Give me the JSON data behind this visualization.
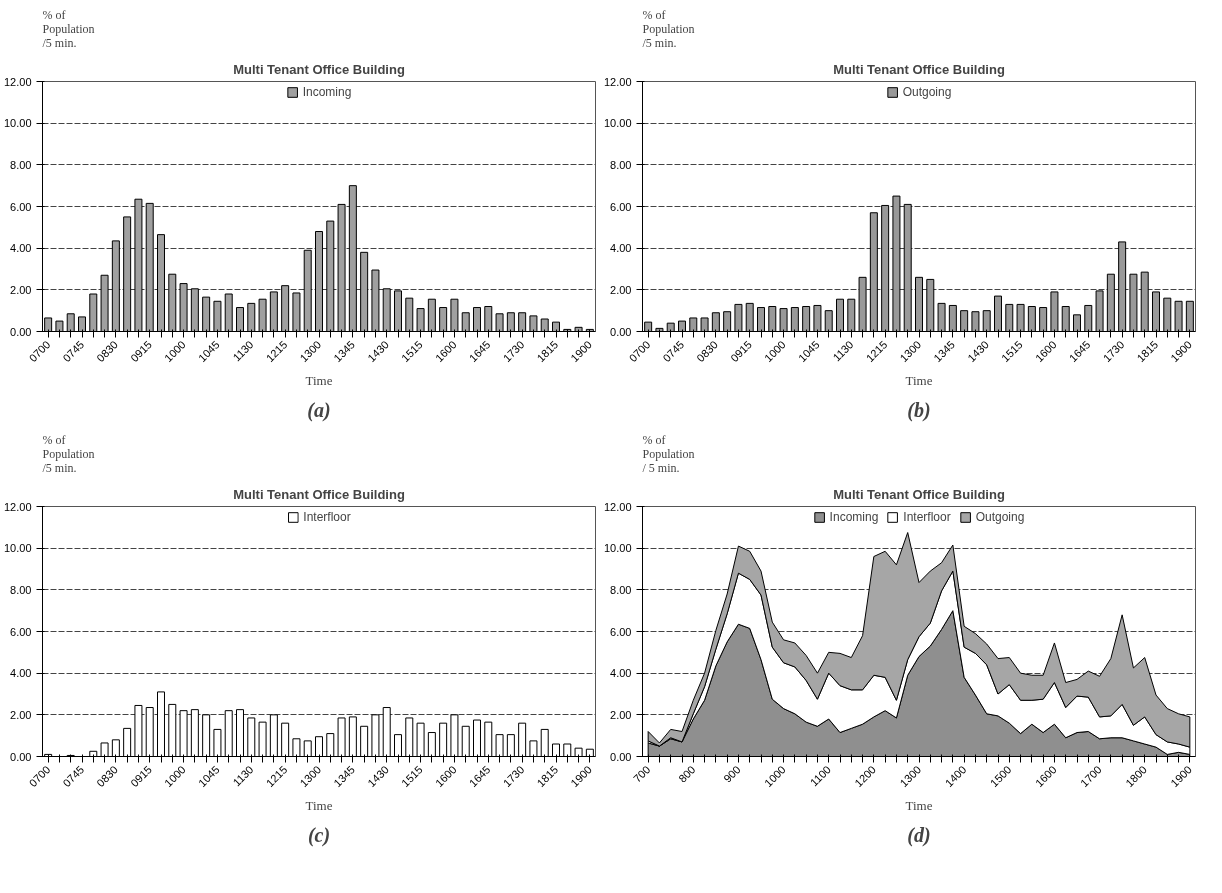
{
  "chart_data": [
    {
      "type": "bar",
      "title": "Multi Tenant Office Building",
      "ylabel": "% of\nPopulation\n/5 min.",
      "xlabel": "Time",
      "annotations": [
        "(a)"
      ],
      "categories": [
        "0700",
        null,
        null,
        "0745",
        null,
        null,
        "0830",
        null,
        null,
        "0915",
        null,
        null,
        "1000",
        null,
        null,
        "1045",
        null,
        null,
        "1130",
        null,
        null,
        "1215",
        null,
        null,
        "1300",
        null,
        null,
        "1345",
        null,
        null,
        "1430",
        null,
        null,
        "1515",
        null,
        null,
        "1600",
        null,
        null,
        "1645",
        null,
        null,
        "1730",
        null,
        null,
        "1815",
        null,
        null,
        "1900"
      ],
      "series": [
        {
          "name": "Incoming",
          "color": "#a0a0a0",
          "values": [
            0.65,
            0.5,
            0.85,
            0.7,
            1.8,
            2.7,
            4.35,
            5.5,
            6.35,
            6.15,
            4.65,
            2.75,
            2.3,
            2.05,
            1.65,
            1.45,
            1.8,
            1.15,
            1.35,
            1.55,
            1.9,
            2.2,
            1.85,
            3.9,
            4.8,
            5.3,
            6.1,
            7.0,
            3.8,
            2.95,
            2.05,
            1.95,
            1.6,
            1.1,
            1.55,
            1.15,
            1.55,
            0.9,
            1.15,
            1.2,
            0.85,
            0.9,
            0.9,
            0.75,
            0.6,
            0.45,
            0.1,
            0.2,
            0.1
          ]
        }
      ],
      "ylim": [
        0,
        12
      ],
      "yticks": [
        {
          "value": 0,
          "label": "0.00"
        },
        {
          "value": 2,
          "label": "2.00"
        },
        {
          "value": 4,
          "label": "4.00"
        },
        {
          "value": 6,
          "label": "6.00"
        },
        {
          "value": 8,
          "label": "8.00"
        },
        {
          "value": 10,
          "label": "10.00"
        },
        {
          "value": 12,
          "label": "12.00"
        }
      ],
      "grid": "y",
      "legend": "top"
    },
    {
      "type": "bar",
      "title": "Multi Tenant Office Building",
      "ylabel": "% of\nPopulation\n/5 min.",
      "xlabel": "Time",
      "annotations": [
        "(b)"
      ],
      "categories": [
        "0700",
        null,
        null,
        "0745",
        null,
        null,
        "0830",
        null,
        null,
        "0915",
        null,
        null,
        "1000",
        null,
        null,
        "1045",
        null,
        null,
        "1130",
        null,
        null,
        "1215",
        null,
        null,
        "1300",
        null,
        null,
        "1345",
        null,
        null,
        "1430",
        null,
        null,
        "1515",
        null,
        null,
        "1600",
        null,
        null,
        "1645",
        null,
        null,
        "1730",
        null,
        null,
        "1815",
        null,
        null,
        "1900"
      ],
      "series": [
        {
          "name": "Outgoing",
          "color": "#999999",
          "values": [
            0.45,
            0.15,
            0.4,
            0.5,
            0.65,
            0.65,
            0.9,
            0.95,
            1.3,
            1.35,
            1.15,
            1.2,
            1.1,
            1.15,
            1.2,
            1.25,
            1.0,
            1.55,
            1.55,
            2.6,
            5.7,
            6.05,
            6.5,
            6.1,
            2.6,
            2.5,
            1.35,
            1.25,
            1.0,
            0.95,
            1.0,
            1.7,
            1.3,
            1.3,
            1.2,
            1.15,
            1.9,
            1.2,
            0.8,
            1.25,
            1.95,
            2.75,
            4.3,
            2.75,
            2.85,
            1.9,
            1.6,
            1.45,
            1.45
          ]
        }
      ],
      "ylim": [
        0,
        12
      ],
      "yticks": [
        {
          "value": 0,
          "label": "0.00"
        },
        {
          "value": 2,
          "label": "2.00"
        },
        {
          "value": 4,
          "label": "4.00"
        },
        {
          "value": 6,
          "label": "6.00"
        },
        {
          "value": 8,
          "label": "8.00"
        },
        {
          "value": 10,
          "label": "10.00"
        },
        {
          "value": 12,
          "label": "12.00"
        }
      ],
      "grid": "y",
      "legend": "top"
    },
    {
      "type": "bar",
      "title": "Multi Tenant Office Building",
      "ylabel": "% of\nPopulation\n/5 min.",
      "xlabel": "Time",
      "annotations": [
        "(c)"
      ],
      "categories": [
        "0700",
        null,
        null,
        "0745",
        null,
        null,
        "0830",
        null,
        null,
        "0915",
        null,
        null,
        "1000",
        null,
        null,
        "1045",
        null,
        null,
        "1130",
        null,
        null,
        "1215",
        null,
        null,
        "1300",
        null,
        null,
        "1345",
        null,
        null,
        "1430",
        null,
        null,
        "1515",
        null,
        null,
        "1600",
        null,
        null,
        "1645",
        null,
        null,
        "1730",
        null,
        null,
        "1815",
        null,
        null,
        "1900"
      ],
      "series": [
        {
          "name": "Interfloor",
          "color": "#ffffff",
          "values": [
            0.1,
            0,
            0.05,
            0,
            0.25,
            0.65,
            0.8,
            1.35,
            2.45,
            2.35,
            3.1,
            2.5,
            2.2,
            2.25,
            2.0,
            1.3,
            2.2,
            2.25,
            1.85,
            1.65,
            2.0,
            1.6,
            0.85,
            0.75,
            0.95,
            1.1,
            1.85,
            1.9,
            1.45,
            2.0,
            2.35,
            1.05,
            1.85,
            1.6,
            1.15,
            1.6,
            2.0,
            1.45,
            1.75,
            1.65,
            1.05,
            1.05,
            1.6,
            0.75,
            1.3,
            0.6,
            0.6,
            0.4,
            0.35
          ]
        }
      ],
      "ylim": [
        0,
        12
      ],
      "yticks": [
        {
          "value": 0,
          "label": "0.00"
        },
        {
          "value": 2,
          "label": "2.00"
        },
        {
          "value": 4,
          "label": "4.00"
        },
        {
          "value": 6,
          "label": "6.00"
        },
        {
          "value": 8,
          "label": "8.00"
        },
        {
          "value": 10,
          "label": "10.00"
        },
        {
          "value": 12,
          "label": "12.00"
        }
      ],
      "grid": "y",
      "legend": "top"
    },
    {
      "type": "area",
      "stacked": true,
      "title": "Multi Tenant Office Building",
      "ylabel": "% of\nPopulation\n/ 5 min.",
      "xlabel": "Time",
      "annotations": [
        "(d)"
      ],
      "categories": [
        "700",
        null,
        null,
        null,
        "800",
        null,
        null,
        null,
        "900",
        null,
        null,
        null,
        "1000",
        null,
        null,
        null,
        "1100",
        null,
        null,
        null,
        "1200",
        null,
        null,
        null,
        "1300",
        null,
        null,
        null,
        "1400",
        null,
        null,
        null,
        "1500",
        null,
        null,
        null,
        "1600",
        null,
        null,
        null,
        "1700",
        null,
        null,
        null,
        "1800",
        null,
        null,
        null,
        "1900"
      ],
      "series": [
        {
          "name": "Incoming",
          "color": "#8f8f8f",
          "values": [
            0.65,
            0.5,
            0.85,
            0.7,
            1.8,
            2.7,
            4.35,
            5.5,
            6.35,
            6.15,
            4.65,
            2.75,
            2.3,
            2.05,
            1.65,
            1.45,
            1.8,
            1.15,
            1.35,
            1.55,
            1.9,
            2.2,
            1.85,
            3.9,
            4.8,
            5.3,
            6.1,
            7.0,
            3.8,
            2.95,
            2.05,
            1.95,
            1.6,
            1.1,
            1.55,
            1.15,
            1.55,
            0.9,
            1.15,
            1.2,
            0.85,
            0.9,
            0.9,
            0.75,
            0.6,
            0.45,
            0.1,
            0.2,
            0.1
          ]
        },
        {
          "name": "Interfloor",
          "color": "#ffffff",
          "values": [
            0.1,
            0,
            0.05,
            0,
            0.25,
            0.65,
            0.8,
            1.35,
            2.45,
            2.35,
            3.1,
            2.5,
            2.2,
            2.25,
            2.0,
            1.3,
            2.2,
            2.25,
            1.85,
            1.65,
            2.0,
            1.6,
            0.85,
            0.75,
            0.95,
            1.1,
            1.85,
            1.9,
            1.45,
            2.0,
            2.35,
            1.05,
            1.85,
            1.6,
            1.15,
            1.6,
            2.0,
            1.45,
            1.75,
            1.65,
            1.05,
            1.05,
            1.6,
            0.75,
            1.3,
            0.6,
            0.6,
            0.4,
            0.35
          ]
        },
        {
          "name": "Outgoing",
          "color": "#a6a6a6",
          "values": [
            0.45,
            0.15,
            0.4,
            0.5,
            0.65,
            0.65,
            0.9,
            0.95,
            1.3,
            1.35,
            1.15,
            1.2,
            1.1,
            1.15,
            1.2,
            1.25,
            1.0,
            1.55,
            1.55,
            2.6,
            5.7,
            6.05,
            6.5,
            6.1,
            2.6,
            2.5,
            1.35,
            1.25,
            1.0,
            0.95,
            1.0,
            1.7,
            1.3,
            1.3,
            1.2,
            1.15,
            1.9,
            1.2,
            0.8,
            1.25,
            1.95,
            2.75,
            4.3,
            2.75,
            2.85,
            1.9,
            1.6,
            1.45,
            1.45
          ]
        }
      ],
      "ylim": [
        0,
        12
      ],
      "yticks": [
        {
          "value": 0,
          "label": "0.00"
        },
        {
          "value": 2,
          "label": "2.00"
        },
        {
          "value": 4,
          "label": "4.00"
        },
        {
          "value": 6,
          "label": "6.00"
        },
        {
          "value": 8,
          "label": "8.00"
        },
        {
          "value": 10,
          "label": "10.00"
        },
        {
          "value": 12,
          "label": "12.00"
        }
      ],
      "grid": "y",
      "legend": "top"
    }
  ]
}
